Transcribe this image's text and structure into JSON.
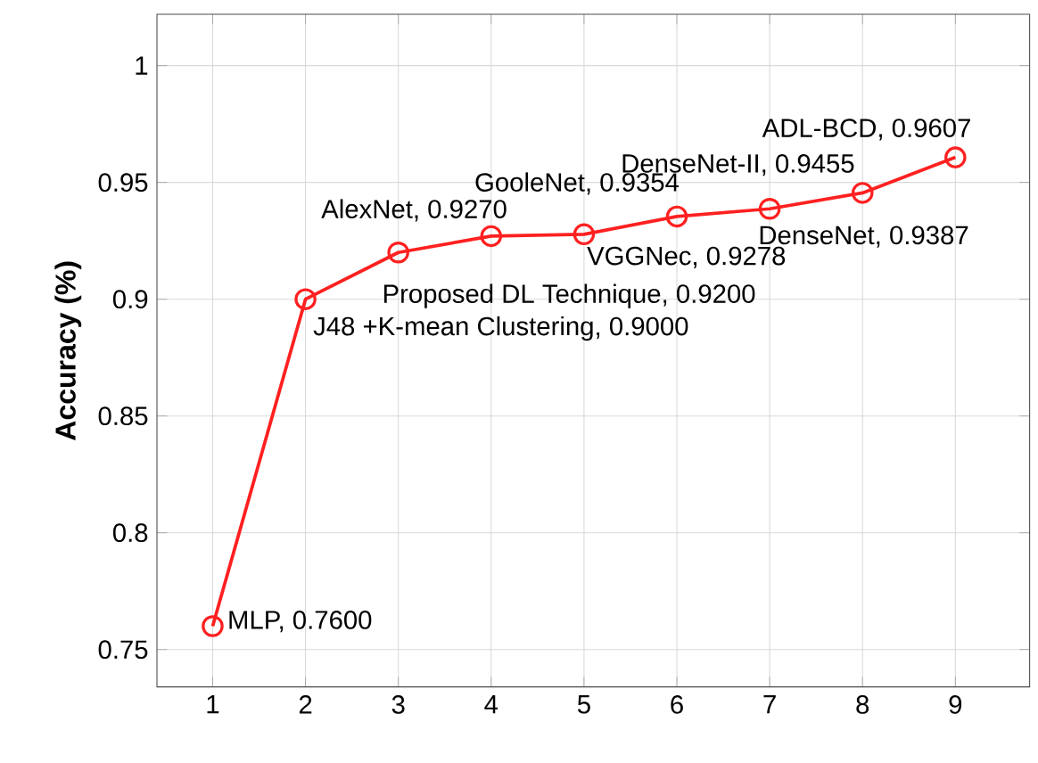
{
  "chart_data": {
    "type": "line",
    "ylabel": "Accuracy (%)",
    "x": [
      1,
      2,
      3,
      4,
      5,
      6,
      7,
      8,
      9
    ],
    "series": [
      {
        "color": "#ff2020",
        "values": [
          0.76,
          0.9,
          0.92,
          0.927,
          0.9278,
          0.9354,
          0.9387,
          0.9455,
          0.9607
        ]
      }
    ],
    "xlim": [
      0.4,
      9.8
    ],
    "ylim": [
      0.734,
      1.022
    ],
    "xticks": [
      1,
      2,
      3,
      4,
      5,
      6,
      7,
      8,
      9
    ],
    "yticks": [
      0.75,
      0.8,
      0.85,
      0.9,
      0.95,
      1
    ],
    "grid": true,
    "marker": "circle",
    "line_style": "solid",
    "annotations": [
      {
        "text": "MLP, 0.7600",
        "x": 1,
        "y": 0.76
      },
      {
        "text": "J48 +K-mean Clustering, 0.9000",
        "x": 2,
        "y": 0.9
      },
      {
        "text": "Proposed DL Technique, 0.9200",
        "x": 3,
        "y": 0.92
      },
      {
        "text": "AlexNet, 0.9270",
        "x": 4,
        "y": 0.927
      },
      {
        "text": "GooleNet, 0.9354",
        "x": 6,
        "y": 0.9354
      },
      {
        "text": "VGGNec, 0.9278",
        "x": 5,
        "y": 0.9278
      },
      {
        "text": "DenseNet, 0.9387",
        "x": 7,
        "y": 0.9387
      },
      {
        "text": "DenseNet-II, 0.9455",
        "x": 8,
        "y": 0.9455
      },
      {
        "text": "ADL-BCD, 0.9607",
        "x": 9,
        "y": 0.9607
      }
    ]
  }
}
